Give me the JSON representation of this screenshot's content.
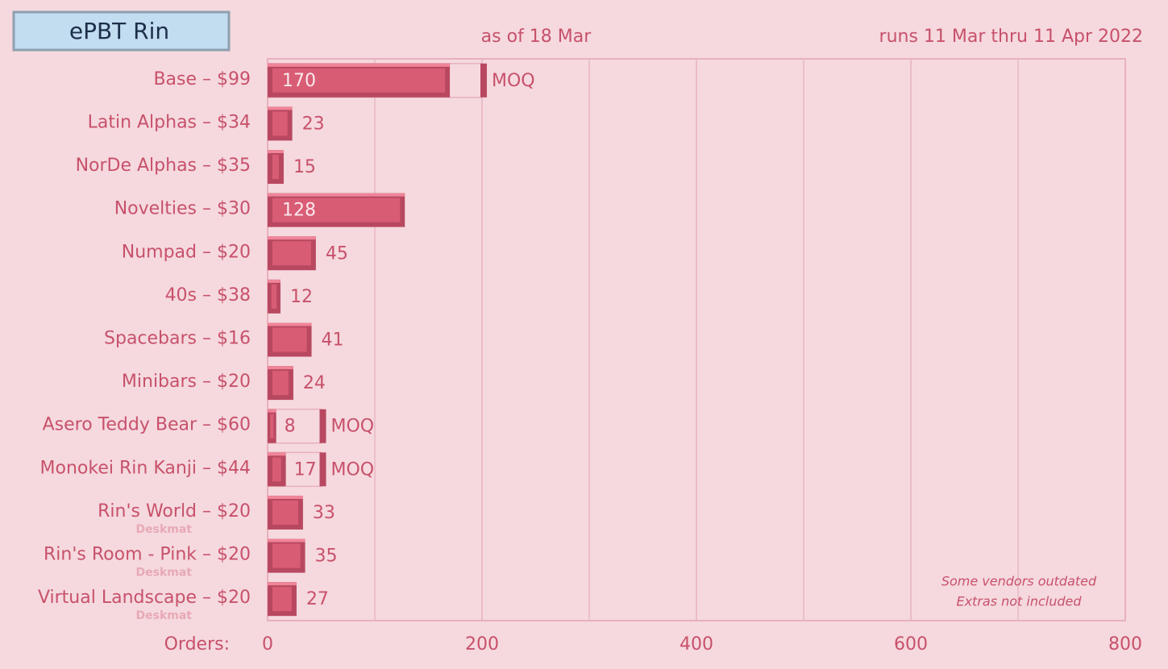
{
  "chart_data": {
    "type": "bar",
    "orientation": "horizontal",
    "title": "ePBT Rin",
    "subtitle": "as of 18 Mar",
    "period": "runs 11 Mar thru 11 Apr 2022",
    "x_label": "Orders:",
    "categories": [
      "Base – $99",
      "Latin Alphas – $34",
      "NorDe Alphas – $35",
      "Novelties – $30",
      "Numpad – $20",
      "40s – $38",
      "Spacebars – $16",
      "Minibars – $20",
      "Asero Teddy Bear – $60",
      "Monokei Rin Kanji – $44",
      "Rin's World – $20",
      "Rin's Room - Pink – $20",
      "Virtual Landscape – $20"
    ],
    "sublabels": [
      null,
      null,
      null,
      null,
      null,
      null,
      null,
      null,
      null,
      null,
      "Deskmat",
      "Deskmat",
      "Deskmat"
    ],
    "values": [
      170,
      23,
      15,
      128,
      45,
      12,
      41,
      24,
      8,
      17,
      33,
      35,
      27
    ],
    "moq": [
      200,
      null,
      null,
      null,
      null,
      null,
      null,
      null,
      50,
      50,
      null,
      null,
      null
    ],
    "moq_label": "MOQ",
    "color": "#d95c75",
    "xlim": [
      0,
      800
    ],
    "xticks": [
      0,
      200,
      400,
      600,
      800
    ],
    "minor_xticks": [
      100,
      300,
      500,
      700
    ],
    "grid": true,
    "notes": [
      "Some vendors outdated",
      "Extras not included"
    ]
  }
}
